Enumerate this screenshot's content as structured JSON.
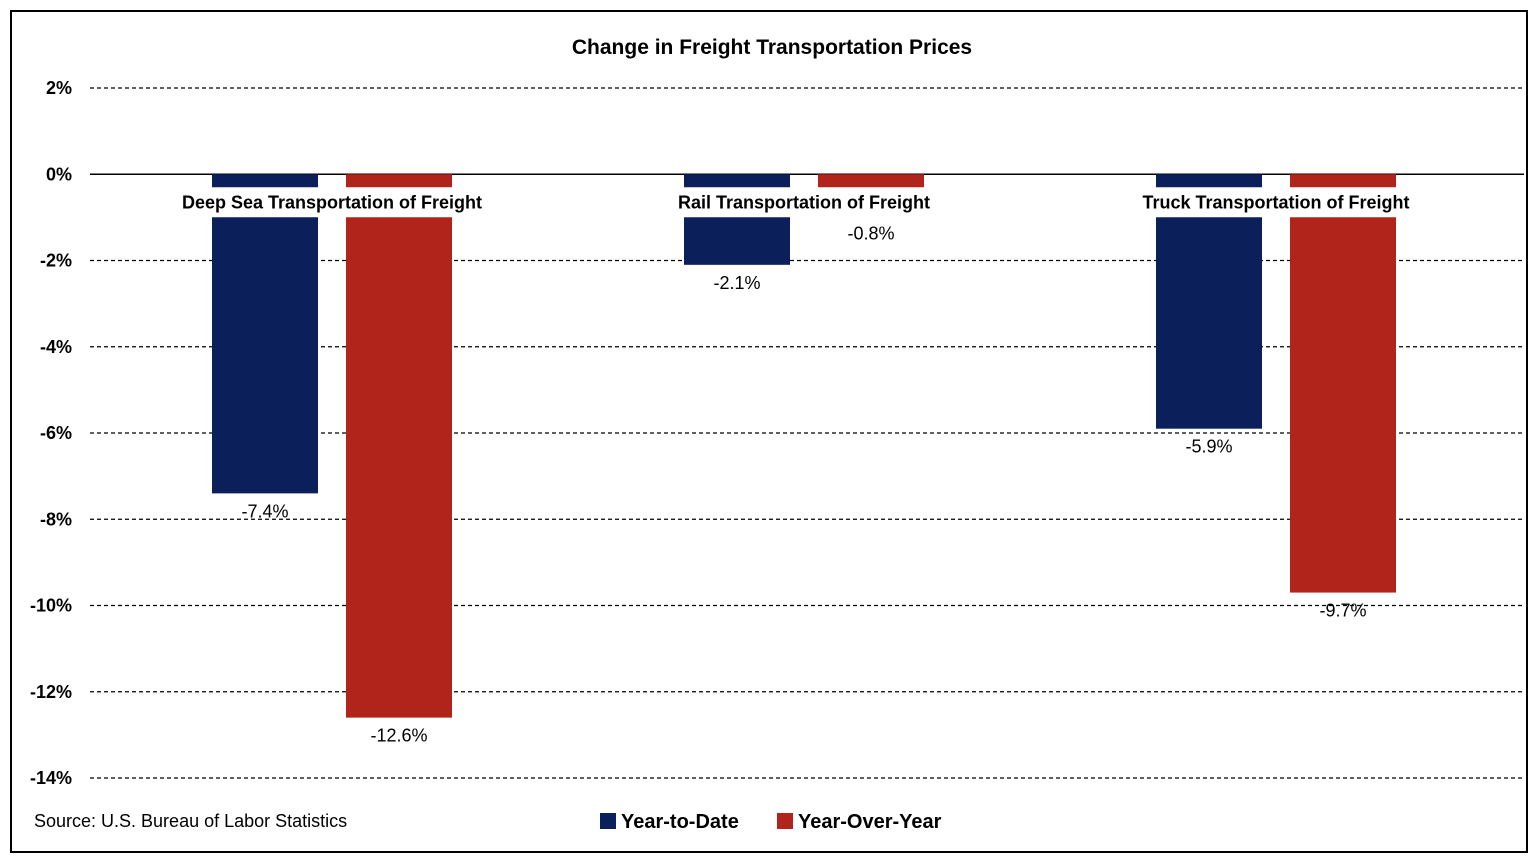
{
  "chart_data": {
    "type": "bar",
    "title": "Change in Freight Transportation Prices",
    "categories": [
      "Deep Sea Transportation of Freight",
      "Rail Transportation of Freight",
      "Truck Transportation of Freight"
    ],
    "series": [
      {
        "name": "Year-to-Date",
        "color": "#0b1f5b",
        "values": [
          -7.4,
          -2.1,
          -5.9
        ],
        "labels": [
          "-7.4%",
          "-2.1%",
          "-5.9%"
        ]
      },
      {
        "name": "Year-Over-Year",
        "color": "#b0241b",
        "values": [
          -12.6,
          -0.8,
          -9.7
        ],
        "labels": [
          "-12.6%",
          "-0.8%",
          "-9.7%"
        ]
      }
    ],
    "y_ticks": [
      2,
      0,
      -2,
      -4,
      -6,
      -8,
      -10,
      -12,
      -14
    ],
    "y_tick_labels": [
      "2%",
      "0%",
      "-2%",
      "-4%",
      "-6%",
      "-8%",
      "-10%",
      "-12%",
      "-14%"
    ],
    "ylim": [
      -14,
      2
    ],
    "grid": true,
    "legend": "bottom-center",
    "source": "Source: U.S. Bureau of Labor Statistics"
  }
}
